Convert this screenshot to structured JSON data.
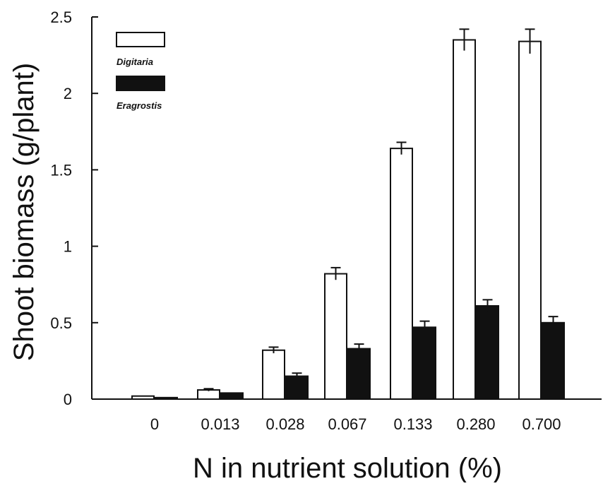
{
  "chart_data": {
    "type": "bar",
    "title": "",
    "xlabel": "N in nutrient solution (%)",
    "ylabel": "Shoot biomass (g/plant)",
    "ylim": [
      0,
      2.5
    ],
    "yticks": [
      "0",
      "0.5",
      "1",
      "1.5",
      "2",
      "2.5"
    ],
    "categories": [
      "0",
      "0.013",
      "0.028",
      "0.067",
      "0.133",
      "0.280",
      "0.700"
    ],
    "series": [
      {
        "name": "Digitaria",
        "fill": "#ffffff",
        "values": [
          0.02,
          0.06,
          0.32,
          0.82,
          1.64,
          2.35,
          2.34
        ],
        "errors": [
          0.005,
          0.008,
          0.02,
          0.04,
          0.04,
          0.07,
          0.08
        ]
      },
      {
        "name": "Eragrostis",
        "fill": "#111111",
        "values": [
          0.01,
          0.04,
          0.15,
          0.33,
          0.47,
          0.61,
          0.5
        ],
        "errors": [
          0.004,
          0.006,
          0.02,
          0.03,
          0.04,
          0.04,
          0.04
        ]
      }
    ],
    "legend_position": "top-left",
    "grid": false
  }
}
